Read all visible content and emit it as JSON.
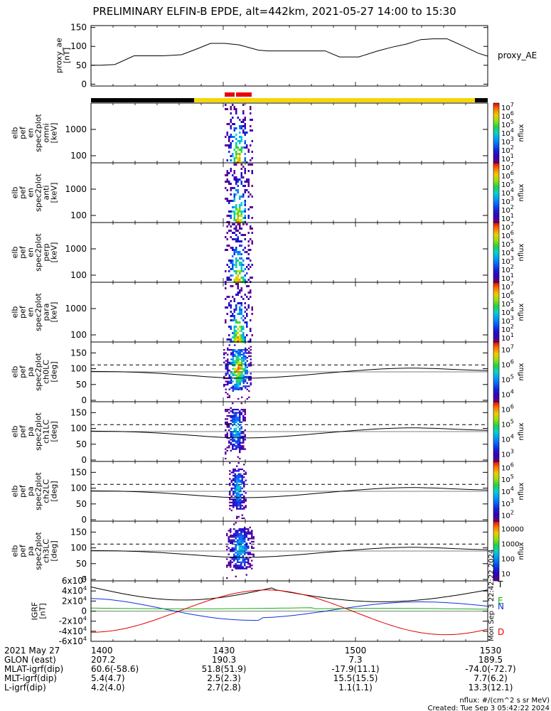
{
  "title": "PRELIMINARY ELFIN-B EPDE, alt=442km, 2021-05-27 14:00 to 15:30",
  "chart_data": [
    {
      "id": "proxy_ae",
      "type": "line",
      "ylabel": [
        "proxy_ae",
        "[nT]"
      ],
      "legend": "proxy_AE",
      "ylim": [
        -5,
        155
      ],
      "yticks": [
        "0",
        "50",
        "100",
        "150"
      ],
      "x": [
        0,
        4,
        10,
        18,
        30,
        38,
        45,
        50,
        56,
        62,
        70,
        74,
        79,
        84,
        90,
        98,
        104,
        112,
        120,
        126,
        132,
        138,
        143,
        149,
        156,
        162,
        166
      ],
      "values": [
        50,
        50,
        52,
        75,
        75,
        78,
        95,
        108,
        108,
        104,
        90,
        88,
        88,
        88,
        88,
        88,
        72,
        72,
        88,
        98,
        106,
        118,
        120,
        120,
        100,
        82,
        74
      ]
    },
    {
      "id": "spec_omni",
      "type": "heatmap",
      "ylog": true,
      "ylabel": [
        "elb",
        "pef",
        "en",
        "spec2plot",
        "omni",
        "[keV]"
      ],
      "yticks": [
        "100",
        "1000"
      ],
      "colorbar": {
        "label": "nflux",
        "ticks": [
          "10^1",
          "10^2",
          "10^3",
          "10^4",
          "10^5",
          "10^6",
          "10^7"
        ]
      }
    },
    {
      "id": "spec_anti",
      "type": "heatmap",
      "ylog": true,
      "ylabel": [
        "elb",
        "pef",
        "en",
        "spec2plot",
        "anti",
        "[keV]"
      ],
      "yticks": [
        "100",
        "1000"
      ],
      "colorbar": {
        "label": "nflux",
        "ticks": [
          "10^1",
          "10^2",
          "10^3",
          "10^4",
          "10^5",
          "10^6",
          "10^7"
        ]
      }
    },
    {
      "id": "spec_perp",
      "type": "heatmap",
      "ylog": true,
      "ylabel": [
        "elb",
        "pef",
        "en",
        "spec2plot",
        "perp",
        "[keV]"
      ],
      "yticks": [
        "100",
        "1000"
      ],
      "colorbar": {
        "label": "nflux",
        "ticks": [
          "10^1",
          "10^2",
          "10^3",
          "10^4",
          "10^5",
          "10^6",
          "10^7"
        ]
      }
    },
    {
      "id": "spec_para",
      "type": "heatmap",
      "ylog": true,
      "ylabel": [
        "elb",
        "pef",
        "en",
        "spec2plot",
        "para",
        "[keV]"
      ],
      "yticks": [
        "100",
        "1000"
      ],
      "colorbar": {
        "label": "nflux",
        "ticks": [
          "10^1",
          "10^2",
          "10^3",
          "10^4",
          "10^5",
          "10^6",
          "10^7"
        ]
      }
    },
    {
      "id": "pa_ch0",
      "type": "heatmap",
      "ylabel": [
        "elb",
        "pef",
        "pa",
        "spec2plot",
        "ch0LC",
        "[deg]"
      ],
      "ylim": [
        0,
        180
      ],
      "yticks": [
        "0",
        "50",
        "100",
        "150"
      ],
      "colorbar": {
        "label": "nflux",
        "ticks": [
          "10^4",
          "10^5",
          "10^6",
          "10^7"
        ]
      }
    },
    {
      "id": "pa_ch1",
      "type": "heatmap",
      "ylabel": [
        "elb",
        "pef",
        "pa",
        "spec2plot",
        "ch1LC",
        "[deg]"
      ],
      "ylim": [
        0,
        180
      ],
      "yticks": [
        "0",
        "50",
        "100",
        "150"
      ],
      "colorbar": {
        "label": "nflux",
        "ticks": [
          "10^3",
          "10^4",
          "10^5",
          "10^6"
        ]
      }
    },
    {
      "id": "pa_ch2",
      "type": "heatmap",
      "ylabel": [
        "elb",
        "pef",
        "pa",
        "spec2plot",
        "ch2LC",
        "[deg]"
      ],
      "ylim": [
        0,
        180
      ],
      "yticks": [
        "0",
        "50",
        "100",
        "150"
      ],
      "colorbar": {
        "label": "nflux",
        "ticks": [
          "10^2",
          "10^3",
          "10^4",
          "10^5",
          "10^6"
        ]
      }
    },
    {
      "id": "pa_ch3",
      "type": "heatmap",
      "ylabel": [
        "elb",
        "pef",
        "pa",
        "spec2plot",
        "ch3LC",
        "[deg]"
      ],
      "ylim": [
        0,
        180
      ],
      "yticks": [
        "0",
        "50",
        "100",
        "150"
      ],
      "colorbar": {
        "label": "nflux",
        "ticks": [
          "10",
          "100",
          "1000",
          "10000"
        ]
      }
    },
    {
      "id": "igrf",
      "type": "line",
      "ylabel": [
        "IGRF",
        "[nT]"
      ],
      "ylim": [
        -60000,
        60000
      ],
      "yticks": [
        "-6x10^4",
        "-4x10^4",
        "-2x10^4",
        "0",
        "2x10^4",
        "4x10^4",
        "6x10^4"
      ],
      "legend": [
        "T",
        "N",
        "E",
        "D"
      ],
      "side_stamp": "Mon Sep  3 22:42:22 2024"
    }
  ],
  "footer": {
    "rows": [
      {
        "label": "2021 May 27",
        "values": [
          "1400",
          "1430",
          "1500",
          "1530"
        ]
      },
      {
        "label": "GLON (east)",
        "values": [
          "207.2",
          "190.3",
          "7.3",
          "189.5"
        ]
      },
      {
        "label": "MLAT-igrf(dip)",
        "values": [
          "60.6(-58.6)",
          "51.8(51.9)",
          "-17.9(11.1)",
          "-74.0(-72.7)"
        ]
      },
      {
        "label": "MLT-igrf(dip)",
        "values": [
          "5.4(4.7)",
          "2.5(2.3)",
          "15.5(15.5)",
          "7.7(6.2)"
        ]
      },
      {
        "label": "L-igrf(dip)",
        "values": [
          "4.2(4.0)",
          "2.7(2.8)",
          "1.1(1.1)",
          "13.3(12.1)"
        ]
      }
    ],
    "nflux_units": "nflux: #/(cm^2 s sr MeV)",
    "created": "Created: Tue Sep  3 05:42:22 2024"
  }
}
